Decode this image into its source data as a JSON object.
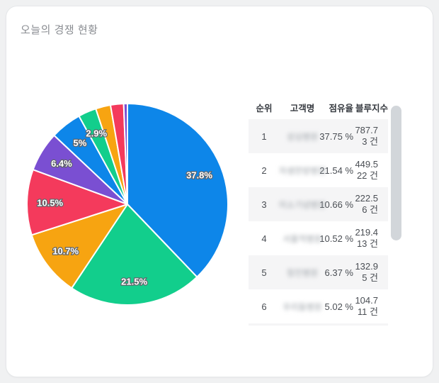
{
  "card": {
    "title": "오늘의 경쟁 현황"
  },
  "chart_data": {
    "type": "pie",
    "title": "오늘의 경쟁 현황",
    "unit": "%",
    "direction": "clockwise",
    "start_angle_deg": 0,
    "label_distance_factor": 0.77,
    "label_style": {
      "color": "#ffffff",
      "outline": "#60646a"
    },
    "slices": [
      {
        "label": "37.8%",
        "value": 37.8,
        "color": "#0d86e9"
      },
      {
        "label": "21.5%",
        "value": 21.5,
        "color": "#12ce8c"
      },
      {
        "label": "10.7%",
        "value": 10.7,
        "color": "#f7a411"
      },
      {
        "label": "10.5%",
        "value": 10.5,
        "color": "#f43a5c"
      },
      {
        "label": "6.4%",
        "value": 6.4,
        "color": "#7a4fd2"
      },
      {
        "label": "5%",
        "value": 5.0,
        "color": "#0d86e9"
      },
      {
        "label": "2.9%",
        "value": 2.9,
        "color": "#12ce8c"
      },
      {
        "label": "",
        "value": 2.4,
        "color": "#f7a411"
      },
      {
        "label": "",
        "value": 2.1,
        "color": "#f43a5c"
      },
      {
        "label": "",
        "value": 0.6,
        "color": "#7a4fd2"
      }
    ]
  },
  "table": {
    "columns": {
      "rank": "순위",
      "name": "고객명",
      "share": "점유율",
      "index": "블루지수"
    },
    "rows": [
      {
        "rank": "1",
        "name_blurred": "성심병원",
        "share": "37.75 %",
        "index_value": "787.7",
        "index_count": "3 건"
      },
      {
        "rank": "2",
        "name_blurred": "자생한방병원",
        "share": "21.54 %",
        "index_value": "449.5",
        "index_count": "22 건"
      },
      {
        "rank": "3",
        "name_blurred": "미소기념병원",
        "share": "10.66 %",
        "index_value": "222.5",
        "index_count": "6 건"
      },
      {
        "rank": "4",
        "name_blurred": "서울적병원",
        "share": "10.52 %",
        "index_value": "219.4",
        "index_count": "13 건"
      },
      {
        "rank": "5",
        "name_blurred": "청진병원",
        "share": "6.37 %",
        "index_value": "132.9",
        "index_count": "5 건"
      },
      {
        "rank": "6",
        "name_blurred": "우리들병원",
        "share": "5.02 %",
        "index_value": "104.7",
        "index_count": "11 건"
      }
    ]
  }
}
